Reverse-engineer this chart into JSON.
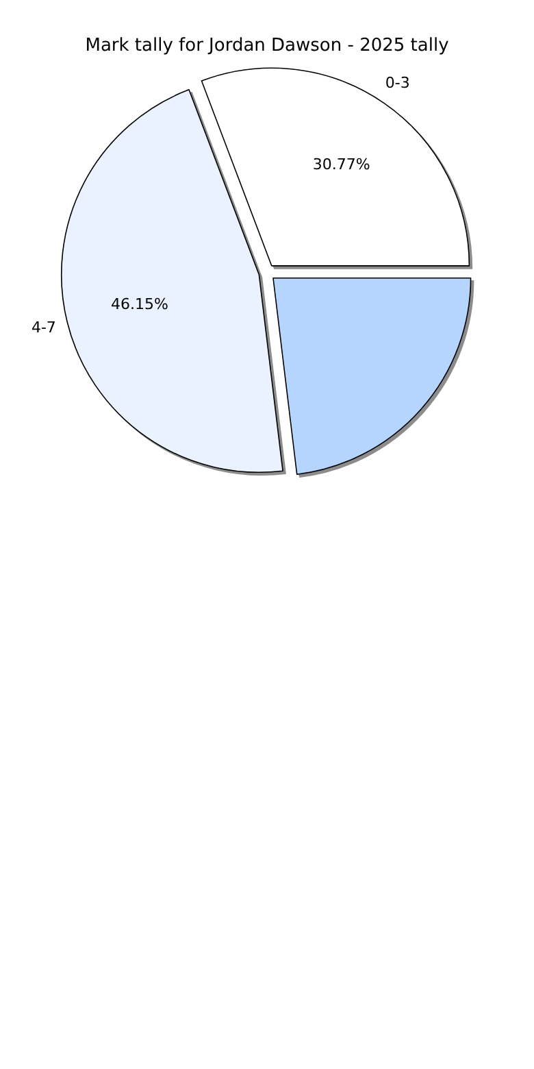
{
  "chart_data": {
    "type": "pie",
    "title": "Mark tally for Jordan Dawson - 2025 tally",
    "categories": [
      "0-3",
      "4-7",
      null
    ],
    "values": [
      30.77,
      46.15,
      23.08
    ],
    "colors": [
      "#ffffff",
      "#eaf1ff",
      "#b5d5ff"
    ],
    "value_labels": [
      "30.77%",
      "46.15%",
      null
    ],
    "legend": false
  }
}
